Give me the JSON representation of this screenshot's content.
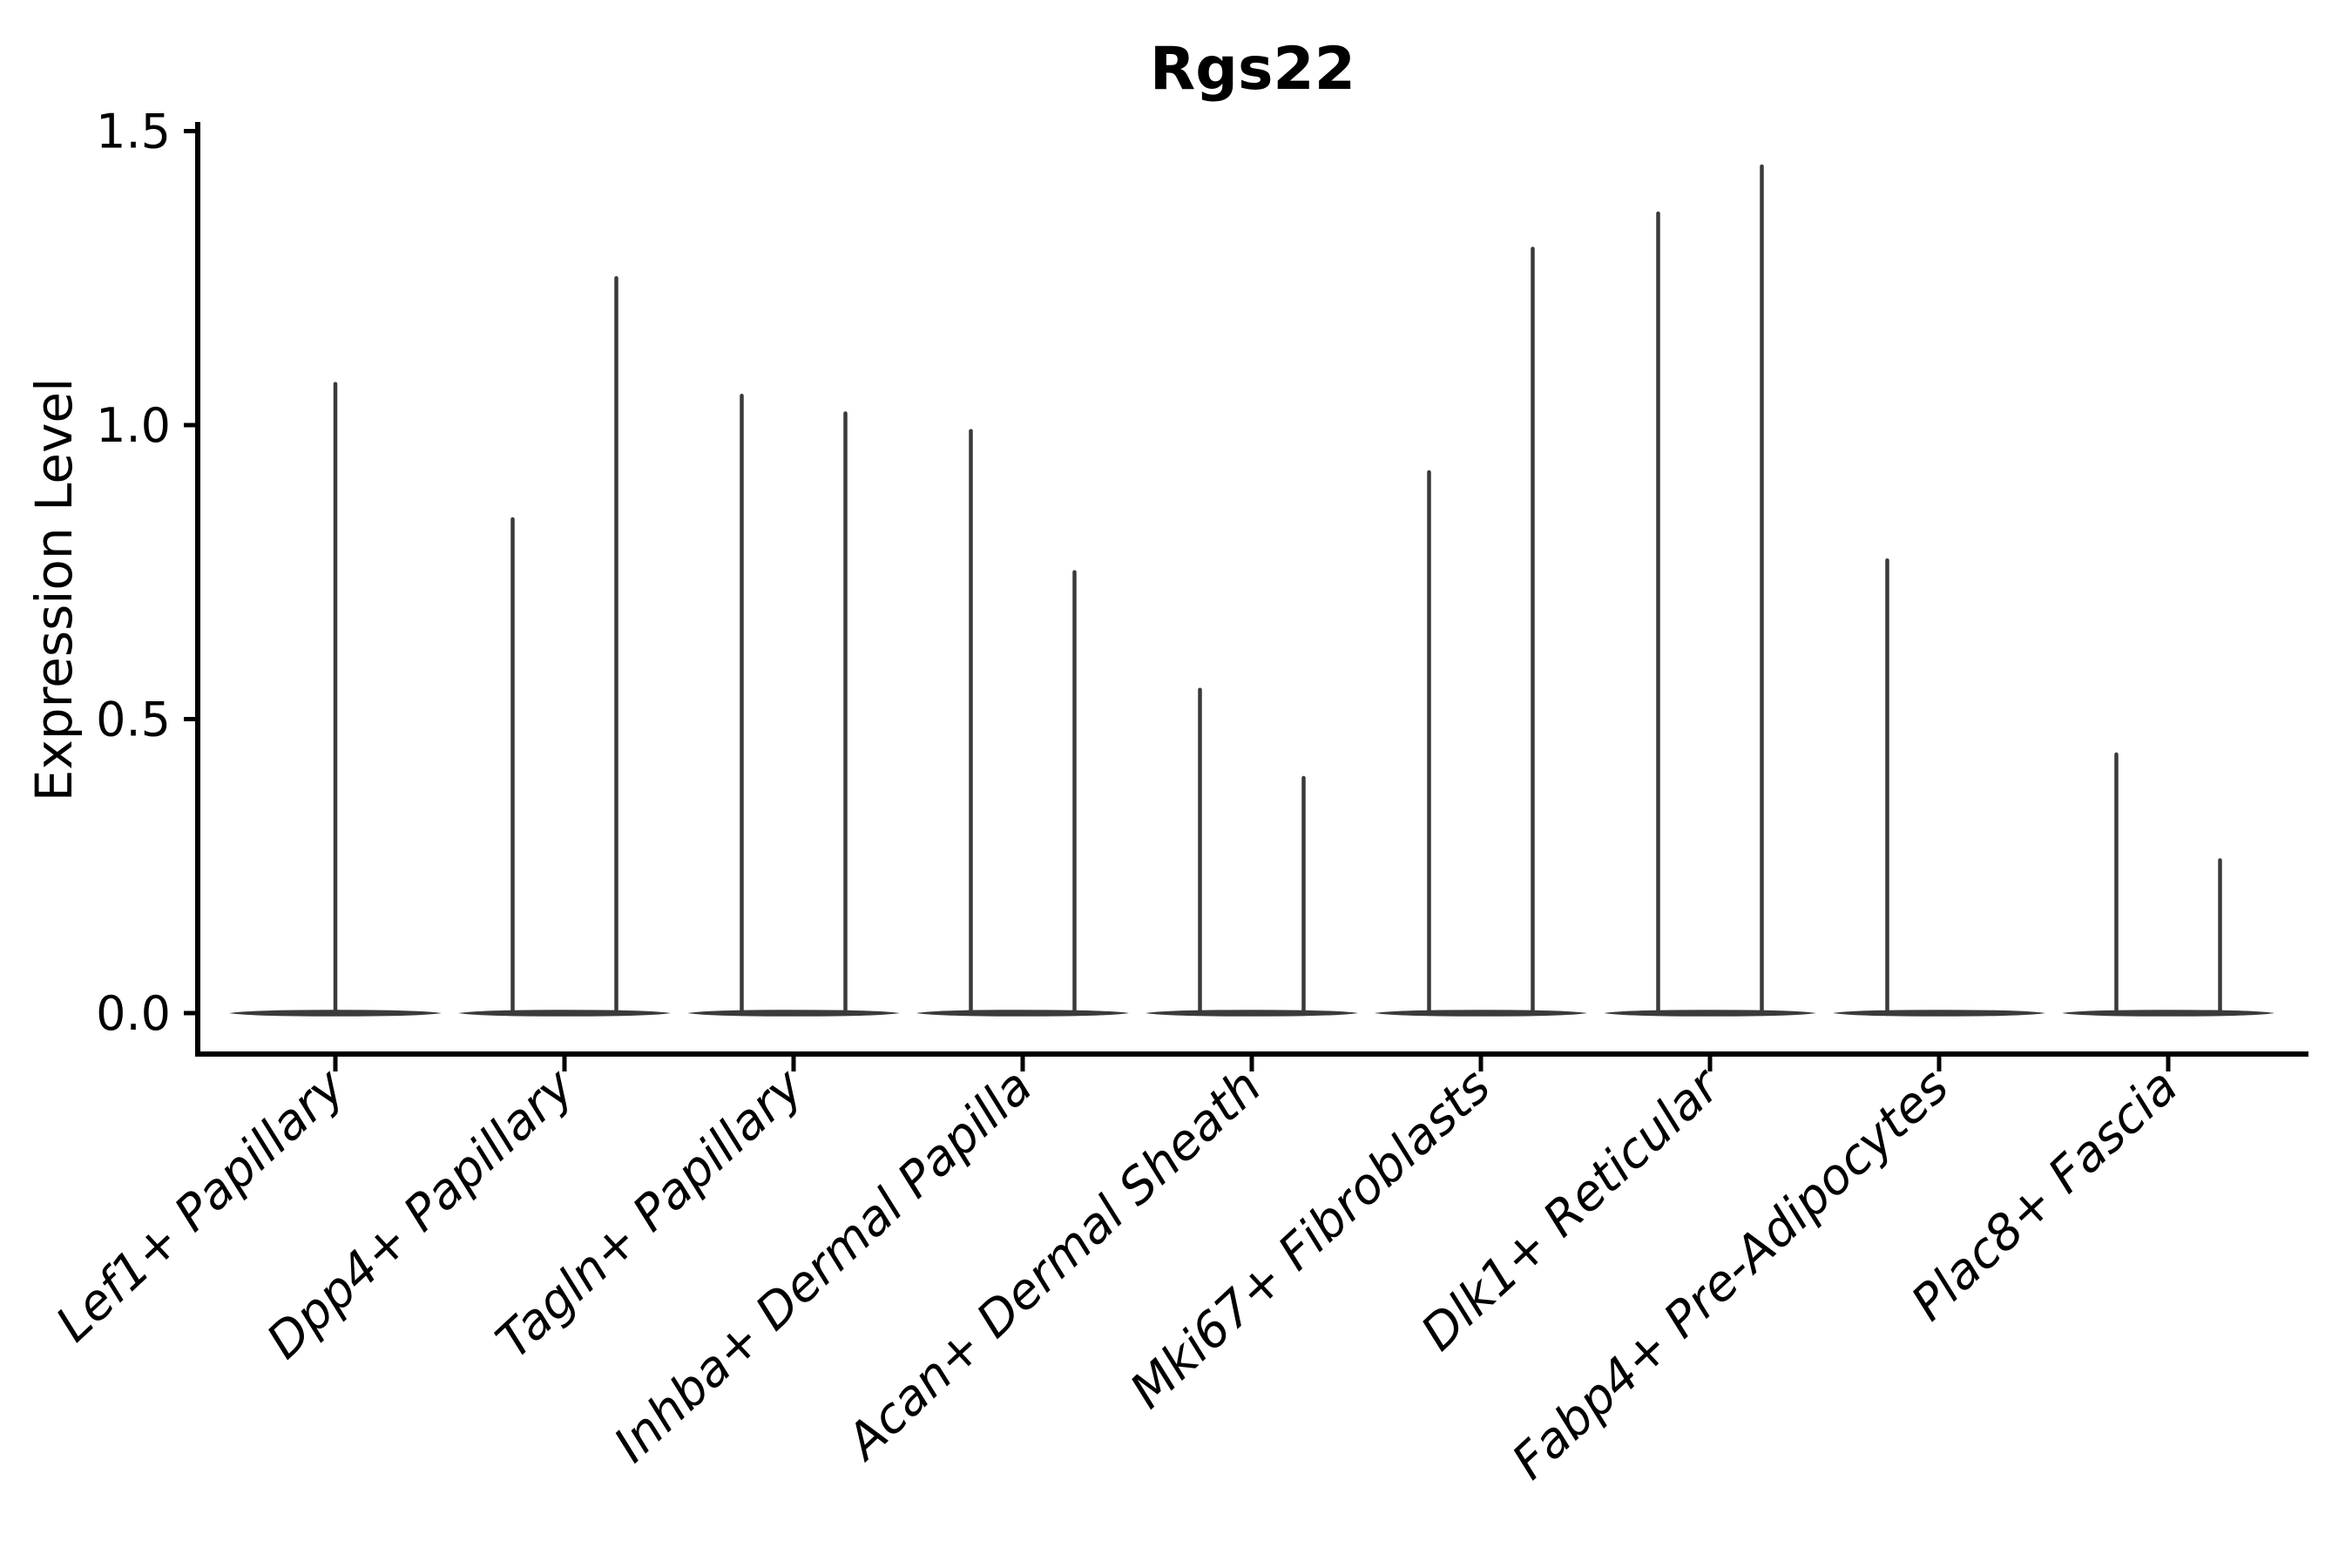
{
  "figure": {
    "title": "Rgs22",
    "background_color": "#ffffff",
    "text_color": "#000000",
    "violin_color": "#3a3a3a",
    "spine_color": "#000000"
  },
  "chart_data": {
    "type": "violin",
    "title": "Rgs22",
    "xlabel": "",
    "ylabel": "Expression Level",
    "ylim": [
      -0.07,
      1.52
    ],
    "yticks": [
      "0.0",
      "0.5",
      "1.0",
      "1.5"
    ],
    "grid": false,
    "legend": null,
    "style": "Each category shows a flat violin body at 0 (most cells not expressing) with thin vertical density spikes reaching the maximum expression level; two dodged spikes per category except single-spike categories.",
    "categories": [
      {
        "label": "Lef1+ Papillary",
        "spikes": [
          {
            "pos": "center",
            "max": 1.07
          }
        ]
      },
      {
        "label": "Dpp4+ Papillary",
        "spikes": [
          {
            "pos": "left",
            "max": 0.84
          },
          {
            "pos": "right",
            "max": 1.25
          }
        ]
      },
      {
        "label": "Tagln+ Papillary",
        "spikes": [
          {
            "pos": "left",
            "max": 1.05
          },
          {
            "pos": "right",
            "max": 1.02
          }
        ]
      },
      {
        "label": "Inhba+ Dermal Papilla",
        "spikes": [
          {
            "pos": "left",
            "max": 0.99
          },
          {
            "pos": "right",
            "max": 0.75
          }
        ]
      },
      {
        "label": "Acan+ Dermal Sheath",
        "spikes": [
          {
            "pos": "left",
            "max": 0.55
          },
          {
            "pos": "right",
            "max": 0.4
          }
        ]
      },
      {
        "label": "Mki67+ Fibroblasts",
        "spikes": [
          {
            "pos": "left",
            "max": 0.92
          },
          {
            "pos": "right",
            "max": 1.3
          }
        ]
      },
      {
        "label": "Dlk1+ Reticular",
        "spikes": [
          {
            "pos": "left",
            "max": 1.36
          },
          {
            "pos": "right",
            "max": 1.44
          }
        ]
      },
      {
        "label": "Fabp4+ Pre-Adipocytes",
        "spikes": [
          {
            "pos": "left",
            "max": 0.77
          }
        ]
      },
      {
        "label": "Plac8+ Fascia",
        "spikes": [
          {
            "pos": "left",
            "max": 0.44
          },
          {
            "pos": "right",
            "max": 0.26
          }
        ]
      }
    ]
  }
}
